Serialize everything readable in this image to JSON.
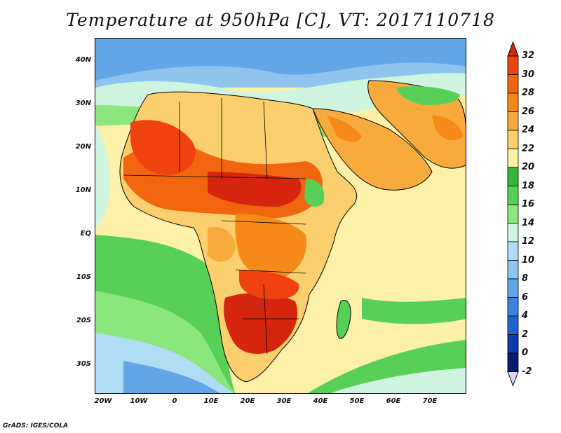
{
  "title": "Temperature at 950hPa [C], VT: 2017110718",
  "credit": "GrADS: IGES/COLA",
  "lat_labels": [
    "40N",
    "30N",
    "20N",
    "10N",
    "EQ",
    "10S",
    "20S",
    "30S"
  ],
  "lon_labels": [
    "20W",
    "10W",
    "0",
    "10E",
    "20E",
    "30E",
    "40E",
    "50E",
    "60E",
    "70E"
  ],
  "colorbar": {
    "labels": [
      "32",
      "30",
      "28",
      "26",
      "24",
      "22",
      "20",
      "18",
      "16",
      "14",
      "12",
      "10",
      "8",
      "6",
      "4",
      "2",
      "0",
      "-2"
    ],
    "colors": [
      "#d6250f",
      "#f0420f",
      "#f2650f",
      "#f58a18",
      "#f8ab3c",
      "#fbcf6e",
      "#fdf0a8",
      "#35b53a",
      "#58d058",
      "#8be67d",
      "#cff5e0",
      "#b0dcf4",
      "#8fc4ee",
      "#63a6e6",
      "#3a84dc",
      "#1f63cc",
      "#0c3ca8",
      "#081b6e"
    ],
    "over_color": "#d6250f",
    "under_color": "#d8d4f0"
  },
  "map": {
    "region": "Africa, Arabia and western Indian Ocean",
    "lon_range": [
      -22,
      80
    ],
    "lat_range": [
      -37,
      45
    ],
    "units": "C"
  }
}
